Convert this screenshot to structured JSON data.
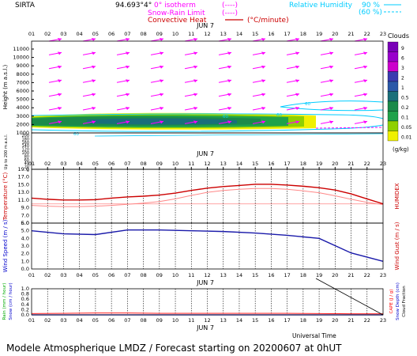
{
  "header": {
    "station": "SIRTA",
    "coords": "94.693°4°",
    "isotherm_label": "0° isotherm",
    "isotherm_legend": "(----)",
    "snow_rain_label": "Snow-Rain Limit",
    "snow_rain_legend": "(----)",
    "convective_label": "Convective Heat",
    "convective_unit": "(°C/minute)",
    "humidity_label": "Relative Humidity",
    "humidity_90": "90 %",
    "humidity_60": "(60 %)"
  },
  "hours": [
    "01",
    "02",
    "03",
    "04",
    "05",
    "06",
    "07",
    "08",
    "09",
    "10",
    "11",
    "12",
    "13",
    "14",
    "15",
    "16",
    "17",
    "18",
    "19",
    "20",
    "21",
    "22",
    "23"
  ],
  "date_label": "JUN  7",
  "footer": {
    "universal_time": "Universal Time",
    "title": "Modele Atmospherique LMDZ / Forecast starting on 20200607 at 0hUT"
  },
  "colors": {
    "arrow": "#ff00ff",
    "humidity": "#00ccff",
    "temperature": "#cc0000",
    "humidex": "#ff8888",
    "wind": "#1a1aaa",
    "rain": "#00aa00",
    "snow": "#0000cc",
    "cape": "#ff0000"
  },
  "chart_data": [
    {
      "type": "heatmap",
      "ylabel": "Height  (m a.s.l.)",
      "ylabel_lower": "Up to 200 m a.s.l.",
      "upper_ticks": [
        "11000",
        "10000",
        "9000",
        "8000",
        "7000",
        "6000",
        "5000",
        "4000",
        "3000",
        "2000",
        "1000"
      ],
      "lower_ticks": [
        "200",
        "180",
        "160",
        "140",
        "120",
        "100",
        "80",
        "60",
        "40",
        "20",
        "0"
      ],
      "colorbar": {
        "title": "Clouds",
        "unit": "(g/kg)",
        "levels": [
          "9",
          "6",
          "3",
          "2",
          "1",
          "0.5",
          "0.2",
          "0.1",
          "0.05",
          "0.01"
        ],
        "colors": [
          "#7a00b8",
          "#9900cc",
          "#cc00cc",
          "#3a3ab0",
          "#2a58a8",
          "#1a6f7a",
          "#1b8a4a",
          "#1fa24a",
          "#8fd000",
          "#f0f000"
        ]
      },
      "humidity_contour_label": "60",
      "wind_vectors_rows_m": [
        11000,
        9500,
        8000,
        6500,
        5000,
        3500,
        2000
      ]
    },
    {
      "type": "line",
      "ylabel": "Temperature (°C)",
      "ylabel_right": "HUMIDEX",
      "y_ticks": [
        "19.0",
        "17.0",
        "15.0",
        "13.0",
        "11.0",
        "9.0",
        "7.0",
        "5.0"
      ],
      "ylim": [
        5,
        19
      ],
      "series": [
        {
          "name": "Temperature",
          "x": [
            1,
            2,
            3,
            4,
            5,
            6,
            7,
            8,
            9,
            10,
            11,
            12,
            13,
            14,
            15,
            16,
            17,
            18,
            19,
            20,
            21,
            22,
            23
          ],
          "values": [
            11.5,
            11.2,
            11.0,
            11.0,
            11.1,
            11.5,
            11.8,
            12.0,
            12.3,
            12.8,
            13.5,
            14.1,
            14.5,
            14.8,
            15.1,
            15.1,
            14.9,
            14.6,
            14.2,
            13.6,
            12.6,
            11.3,
            10.0
          ]
        },
        {
          "name": "Humidex",
          "x": [
            1,
            2,
            3,
            4,
            5,
            6,
            7,
            8,
            9,
            10,
            11,
            12,
            13,
            14,
            15,
            16,
            17,
            18,
            19,
            20,
            21,
            22,
            23
          ],
          "values": [
            9.6,
            9.4,
            9.3,
            9.3,
            9.4,
            9.6,
            9.9,
            10.2,
            10.6,
            11.3,
            12.2,
            13.0,
            13.5,
            13.8,
            14.0,
            14.0,
            13.8,
            13.4,
            12.9,
            12.1,
            11.2,
            10.4,
            9.8
          ]
        }
      ],
      "reference_line": 10.0
    },
    {
      "type": "line",
      "ylabel": "Wind Speed (m / s)",
      "ylabel_right": "Wind Gust (m / s)",
      "y_ticks": [
        "6.0",
        "5.0",
        "4.0",
        "3.0",
        "2.0",
        "1.0",
        "0.0"
      ],
      "ylim": [
        0,
        6
      ],
      "series": [
        {
          "name": "Wind Speed",
          "x": [
            1,
            3,
            5,
            7,
            9,
            11,
            13,
            15,
            17,
            19,
            21,
            23
          ],
          "values": [
            5.0,
            4.6,
            4.5,
            5.1,
            5.1,
            5.0,
            4.9,
            4.7,
            4.4,
            4.0,
            2.1,
            1.0
          ]
        }
      ]
    },
    {
      "type": "line",
      "ylabel": "Rain (mm / hour)",
      "ylabel_snow": "Snow (cm / hour)",
      "ylabel_right": "CAPE (J / g)",
      "ylabel_right2": "Snow Depth (cm)",
      "ylabel_right3": "Cloud Fraction",
      "y_ticks": [
        "1.0",
        "0.8",
        "0.6",
        "0.4",
        "0.2",
        "0.0"
      ],
      "ylim": [
        0,
        1
      ],
      "series": [
        {
          "name": "CAPE",
          "x": [
            1,
            3,
            5,
            7,
            9,
            11,
            13,
            15,
            17,
            19,
            21,
            23
          ],
          "values": [
            0.05,
            0.06,
            0.07,
            0.07,
            0.06,
            0.06,
            0.06,
            0.06,
            0.06,
            0.05,
            0.04,
            0.04
          ]
        },
        {
          "name": "Rain",
          "x": [
            1,
            23
          ],
          "values": [
            0.0,
            0.0
          ]
        }
      ]
    }
  ]
}
